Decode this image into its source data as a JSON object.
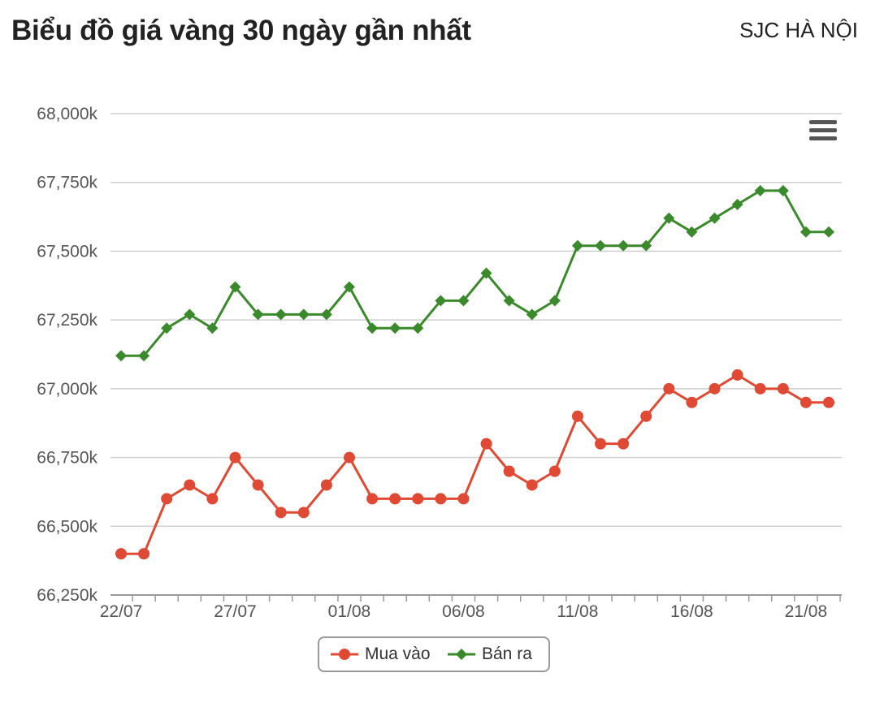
{
  "header": {
    "title": "Biểu đồ giá vàng 30 ngày gần nhất",
    "location": "SJC HÀ NỘI"
  },
  "menu": {
    "icon": "hamburger-menu-icon"
  },
  "colors": {
    "buy": "#e04a34",
    "sell": "#3a8a2c",
    "grid": "#d0d0d0",
    "axis": "#999999"
  },
  "chart_data": {
    "type": "line",
    "title": "Biểu đồ giá vàng 30 ngày gần nhất",
    "x": [
      "22/07",
      "23/07",
      "24/07",
      "25/07",
      "26/07",
      "27/07",
      "28/07",
      "29/07",
      "30/07",
      "31/07",
      "01/08",
      "02/08",
      "03/08",
      "04/08",
      "05/08",
      "06/08",
      "07/08",
      "08/08",
      "09/08",
      "10/08",
      "11/08",
      "12/08",
      "13/08",
      "14/08",
      "15/08",
      "16/08",
      "17/08",
      "18/08",
      "19/08",
      "20/08",
      "21/08",
      "22/08"
    ],
    "x_tick_labels": [
      "22/07",
      "27/07",
      "01/08",
      "06/08",
      "11/08",
      "16/08",
      "21/08"
    ],
    "y_tick_labels": [
      "68,000k",
      "67,750k",
      "67,500k",
      "67,250k",
      "67,000k",
      "66,750k",
      "66,500k",
      "66,250k"
    ],
    "ylim": [
      66250,
      68000
    ],
    "series": [
      {
        "name": "Mua vào",
        "marker": "circle",
        "values": [
          66400,
          66400,
          66600,
          66650,
          66600,
          66750,
          66650,
          66550,
          66550,
          66650,
          66750,
          66600,
          66600,
          66600,
          66600,
          66600,
          66800,
          66700,
          66650,
          66700,
          66900,
          66800,
          66800,
          66900,
          67000,
          66950,
          67000,
          67050,
          67000,
          67000,
          66950,
          66950
        ]
      },
      {
        "name": "Bán ra",
        "marker": "diamond",
        "values": [
          67120,
          67120,
          67220,
          67270,
          67220,
          67370,
          67270,
          67270,
          67270,
          67270,
          67370,
          67220,
          67220,
          67220,
          67320,
          67320,
          67420,
          67320,
          67270,
          67320,
          67520,
          67520,
          67520,
          67520,
          67620,
          67570,
          67620,
          67670,
          67720,
          67720,
          67570,
          67570
        ]
      }
    ],
    "grid": true,
    "legend": "bottom-center"
  }
}
